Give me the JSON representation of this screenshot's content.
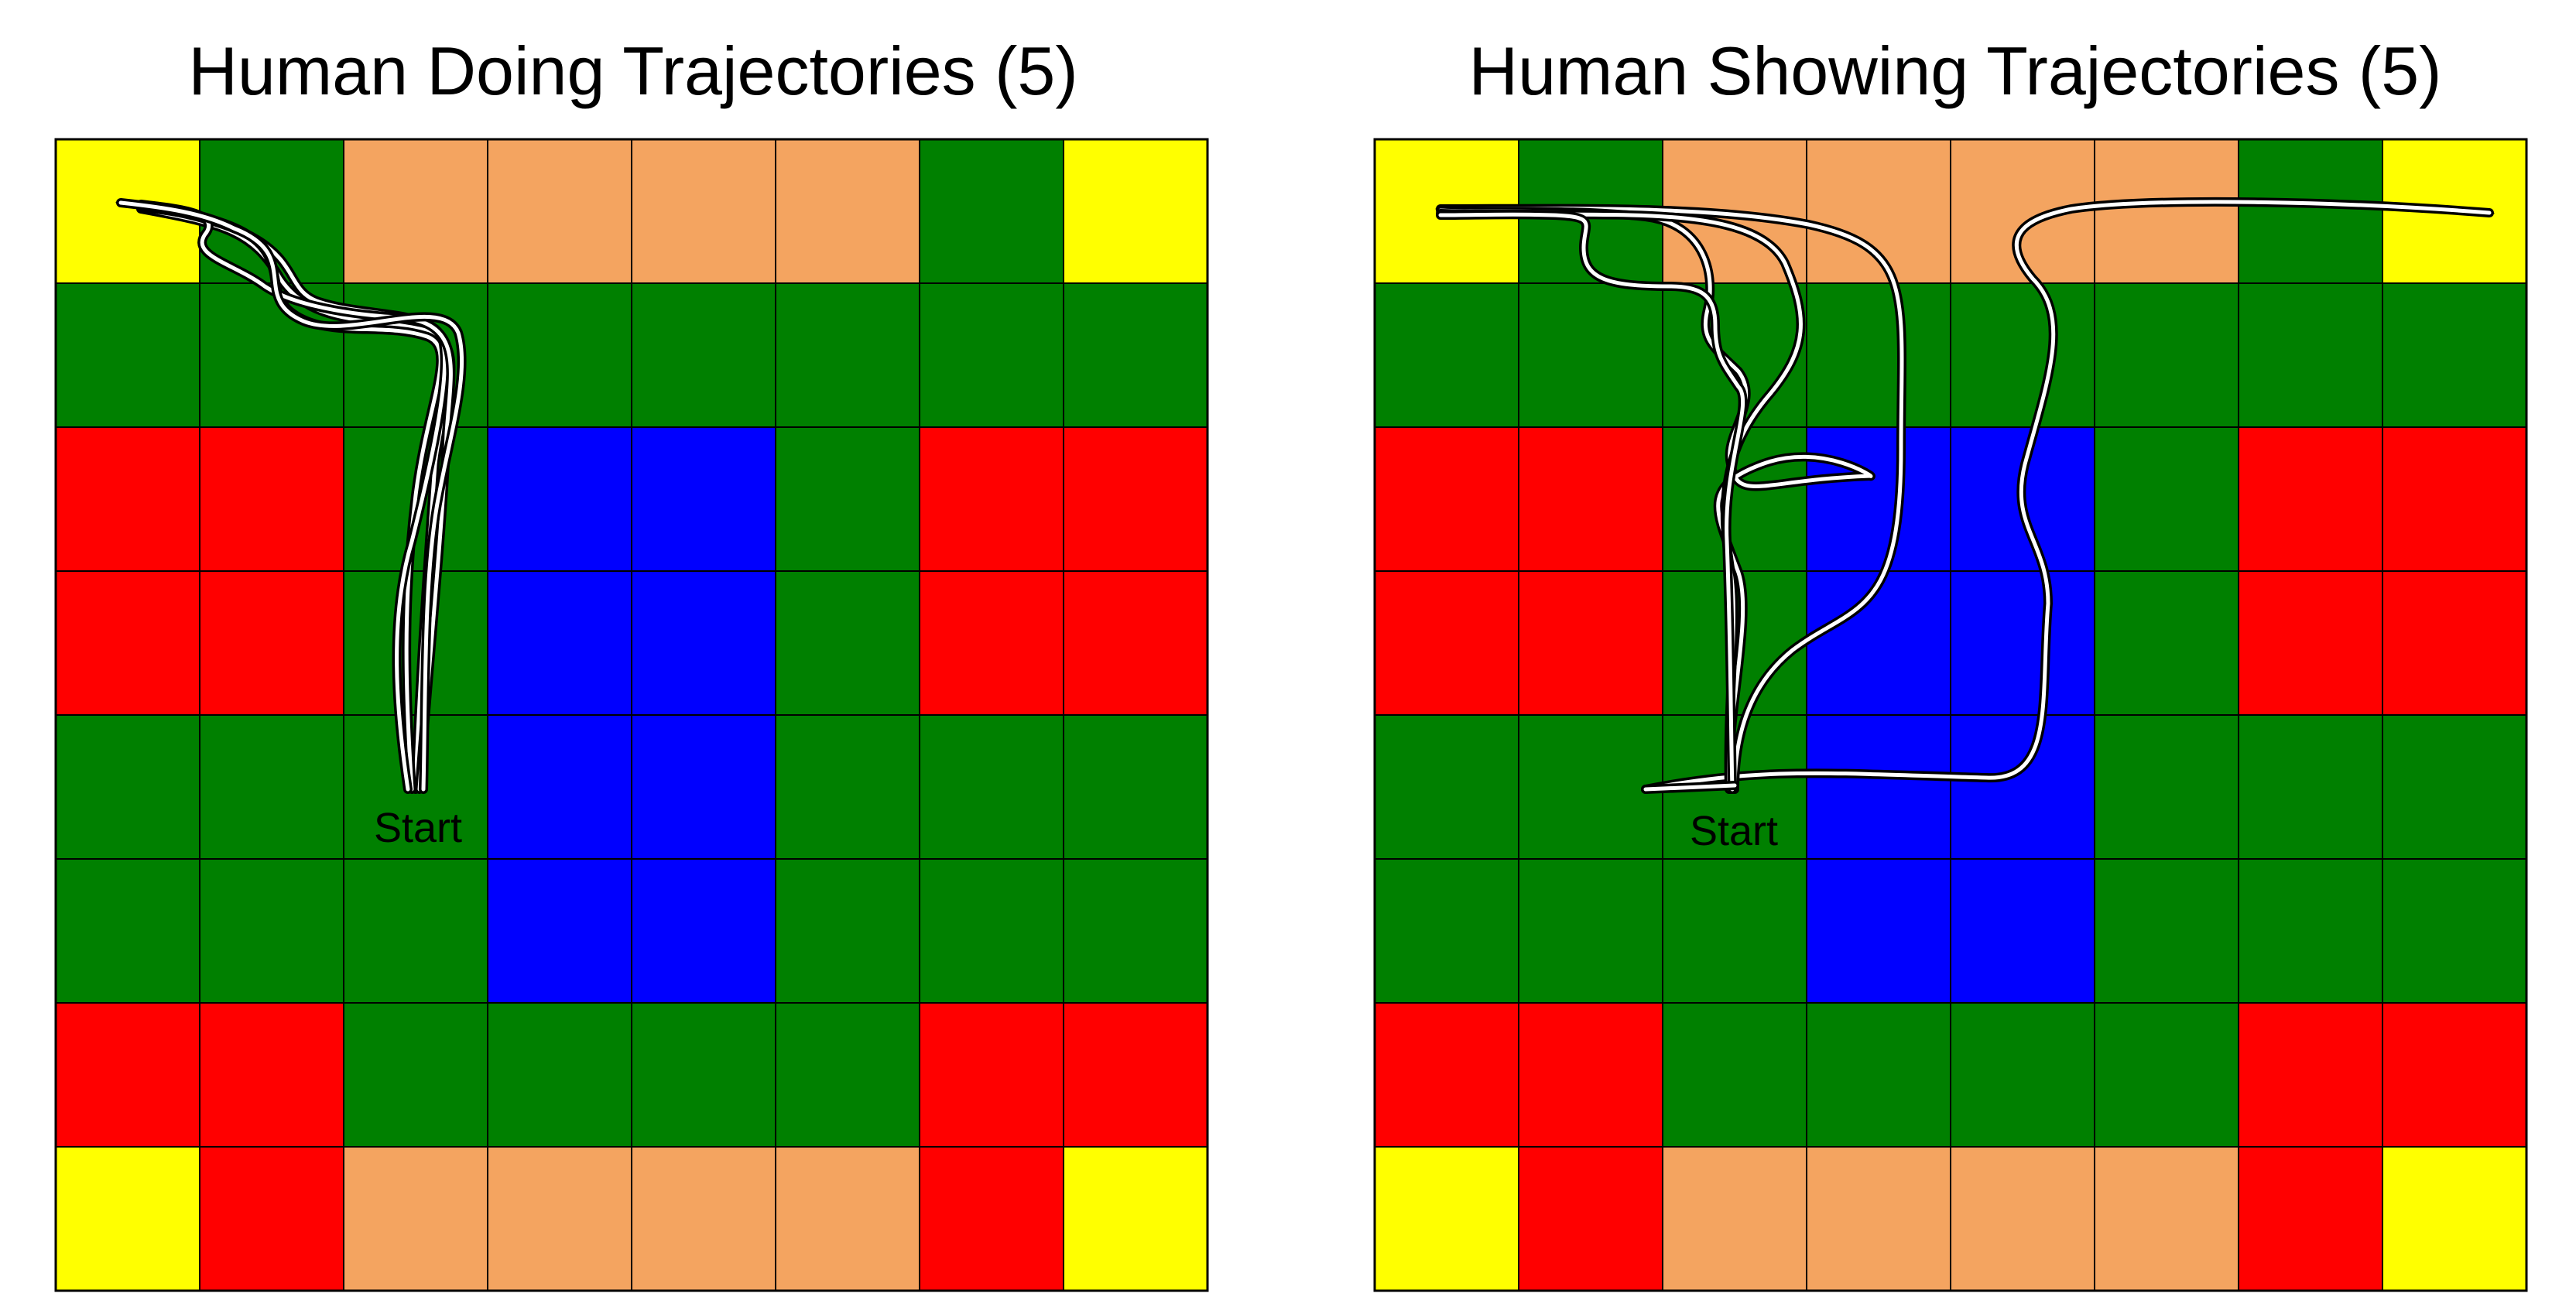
{
  "colors": {
    "G": "#008000",
    "R": "#ff0000",
    "Y": "#ffff00",
    "O": "#f4a460",
    "B": "#0000ff",
    "grid_line": "#000000",
    "path_outer": "#000000",
    "path_inner": "#ffffff"
  },
  "grid": {
    "rows": 8,
    "cols": 8,
    "cells": [
      [
        "Y",
        "G",
        "O",
        "O",
        "O",
        "O",
        "G",
        "Y"
      ],
      [
        "G",
        "G",
        "G",
        "G",
        "G",
        "G",
        "G",
        "G"
      ],
      [
        "R",
        "R",
        "G",
        "B",
        "B",
        "G",
        "R",
        "R"
      ],
      [
        "R",
        "R",
        "G",
        "B",
        "B",
        "G",
        "R",
        "R"
      ],
      [
        "G",
        "G",
        "G",
        "B",
        "B",
        "G",
        "G",
        "G"
      ],
      [
        "G",
        "G",
        "G",
        "B",
        "B",
        "G",
        "G",
        "G"
      ],
      [
        "R",
        "R",
        "G",
        "G",
        "G",
        "G",
        "R",
        "R"
      ],
      [
        "Y",
        "R",
        "O",
        "O",
        "O",
        "O",
        "R",
        "Y"
      ]
    ]
  },
  "panels": [
    {
      "id": "doing",
      "title": "Human Doing Trajectories (5)",
      "start_label": "Start",
      "start_cell": [
        2,
        4
      ]
    },
    {
      "id": "showing",
      "title": "Human Showing Trajectories (5)",
      "start_label": "Start",
      "start_cell": [
        2,
        4
      ]
    }
  ]
}
